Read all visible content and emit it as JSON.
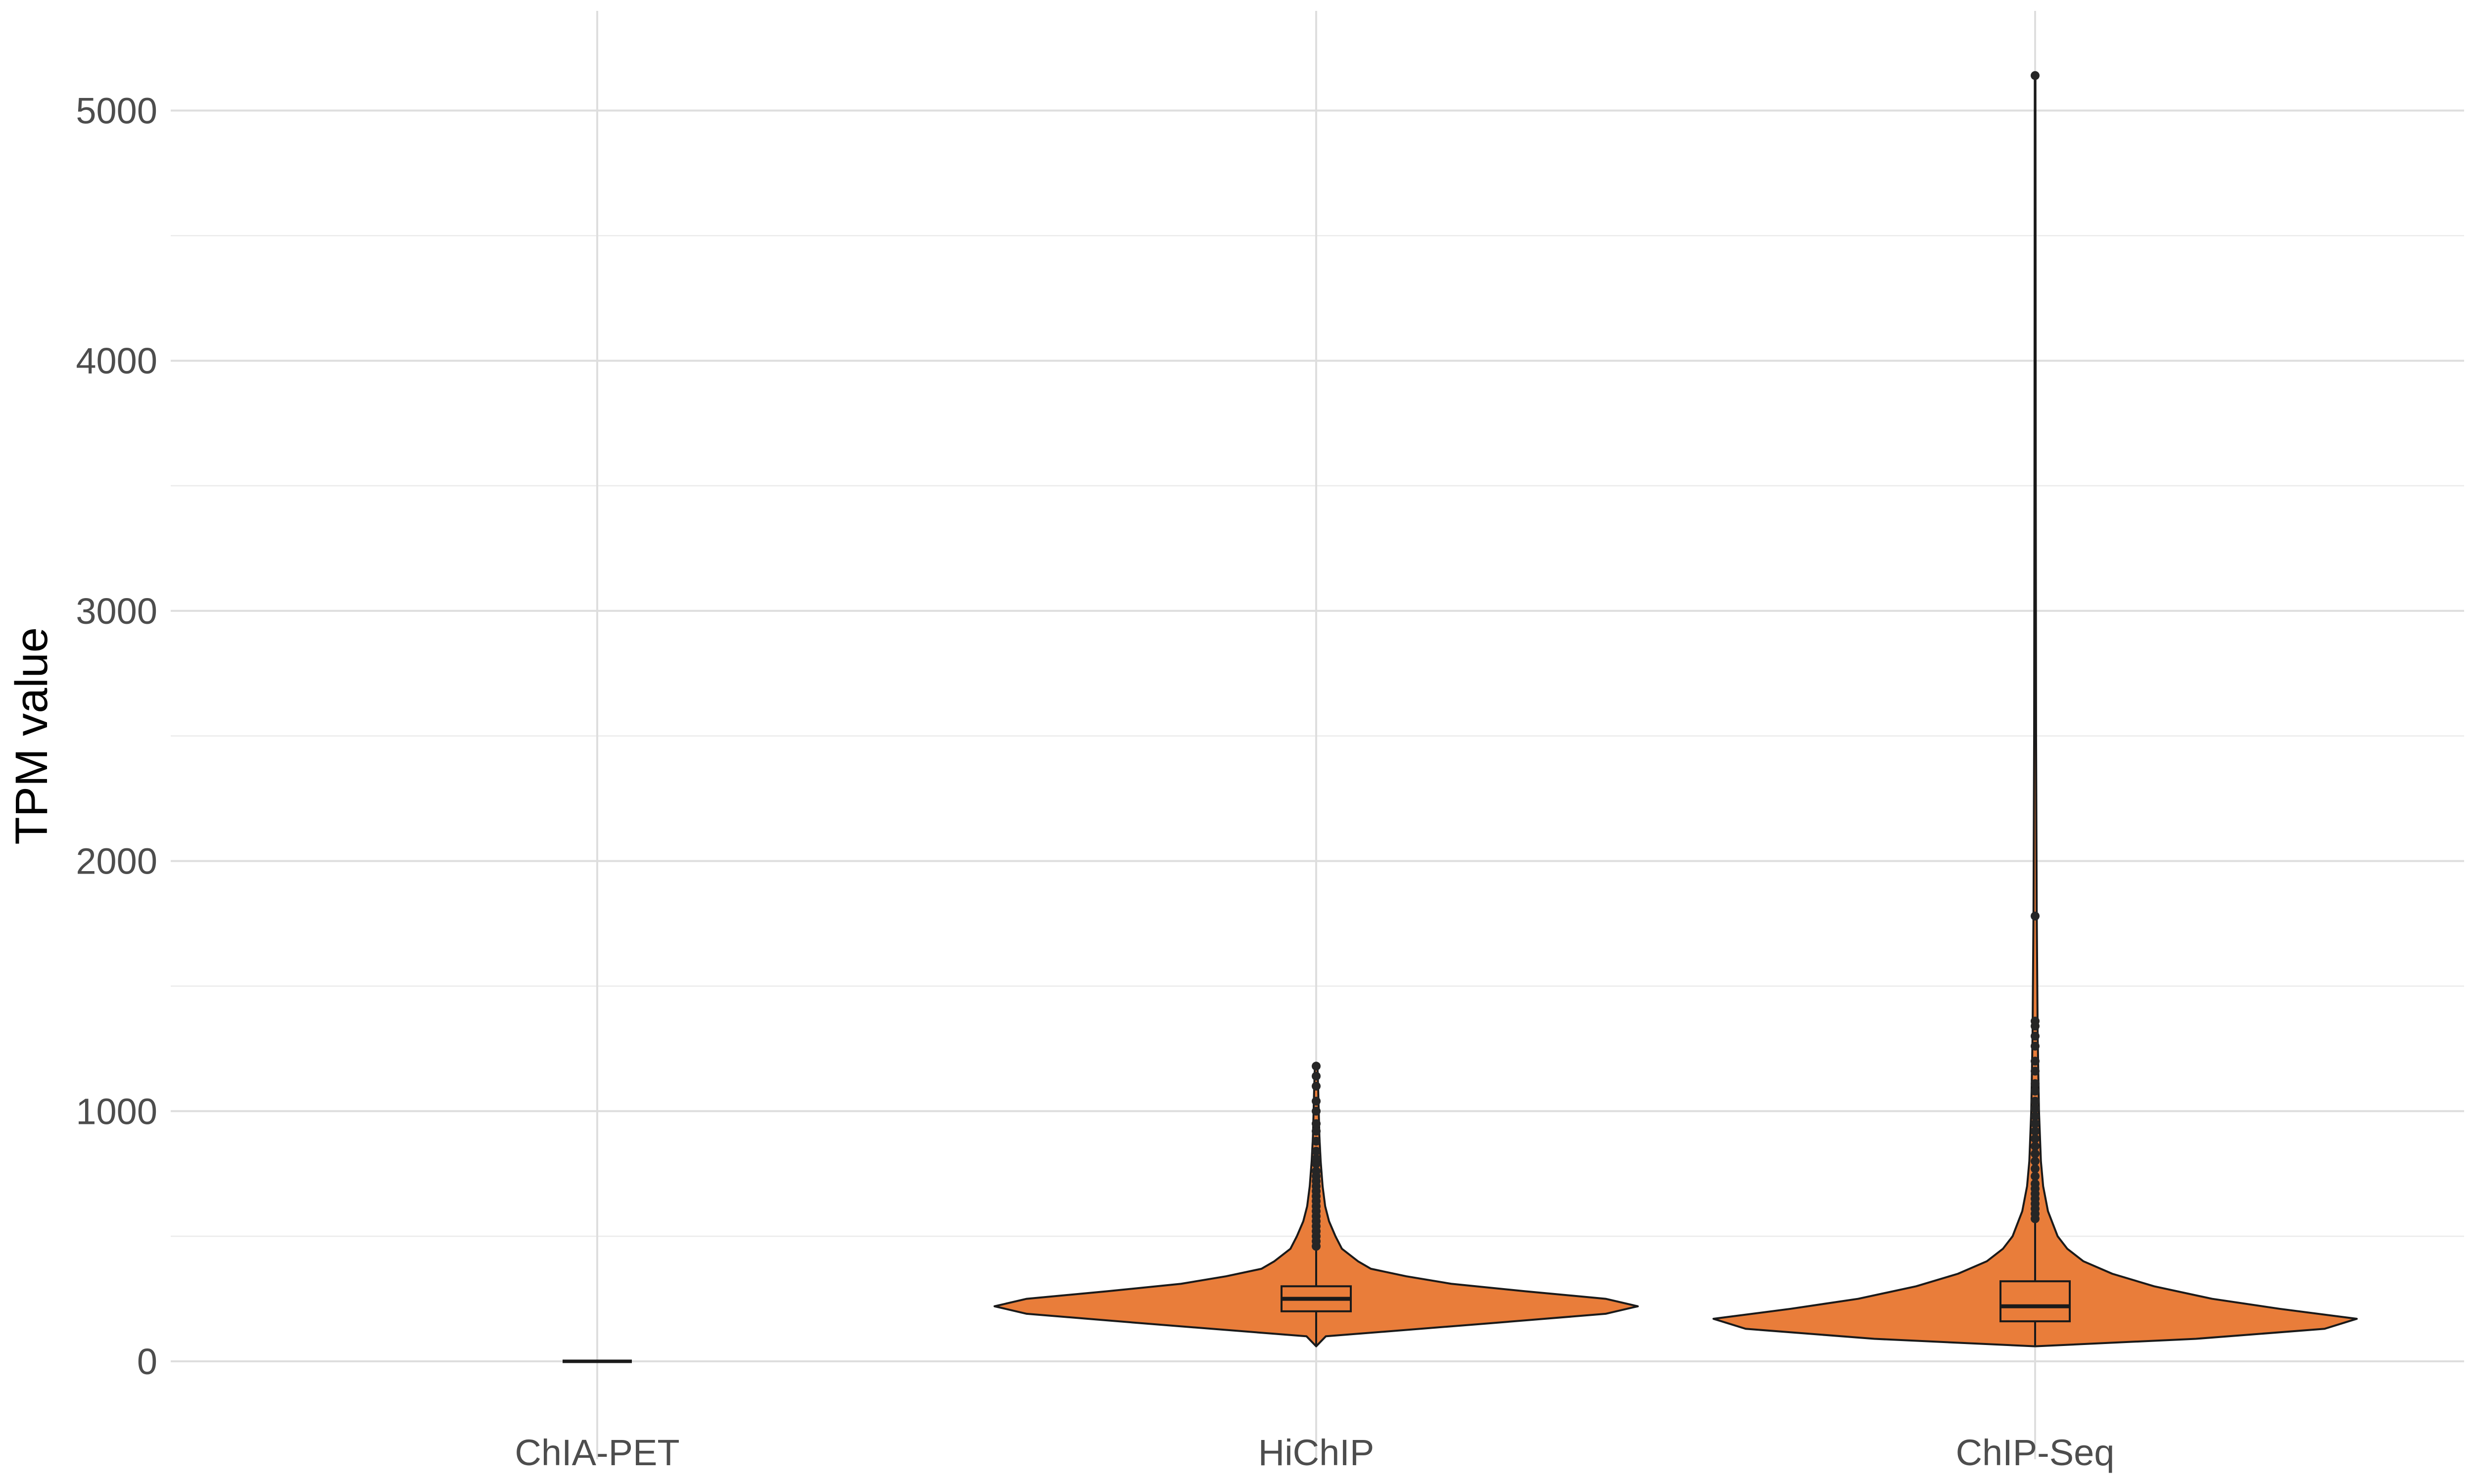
{
  "chart_data": {
    "type": "violin",
    "title": "",
    "xlabel": "",
    "ylabel": "TPM value",
    "ylim": [
      -400,
      5400
    ],
    "y_ticks": [
      0,
      1000,
      2000,
      3000,
      4000,
      5000
    ],
    "y_tick_labels": [
      "0",
      "1000",
      "2000",
      "3000",
      "4000",
      "5000"
    ],
    "y_minor_ticks": [
      500,
      1500,
      2500,
      3500,
      4500
    ],
    "grid": true,
    "legend": "none",
    "fill_color": "#e97d3a",
    "outline_color": "#1a1a1a",
    "categories": [
      "ChIA-PET",
      "HiChIP",
      "ChIP-Seq"
    ],
    "groups": [
      {
        "category": "ChIA-PET",
        "violin_profile": [],
        "box": {
          "min": 0,
          "q1": 0,
          "median": 0,
          "q3": 0,
          "max": 0
        },
        "outliers": []
      },
      {
        "category": "HiChIP",
        "violin_profile": [
          [
            60,
            0.0
          ],
          [
            100,
            0.03
          ],
          [
            150,
            0.52
          ],
          [
            190,
            0.9
          ],
          [
            220,
            1.0
          ],
          [
            250,
            0.9
          ],
          [
            280,
            0.65
          ],
          [
            310,
            0.42
          ],
          [
            340,
            0.28
          ],
          [
            370,
            0.17
          ],
          [
            400,
            0.13
          ],
          [
            450,
            0.08
          ],
          [
            500,
            0.06
          ],
          [
            560,
            0.04
          ],
          [
            620,
            0.028
          ],
          [
            700,
            0.02
          ],
          [
            800,
            0.014
          ],
          [
            900,
            0.01
          ],
          [
            1000,
            0.008
          ],
          [
            1100,
            0.006
          ],
          [
            1180,
            0.004
          ]
        ],
        "box": {
          "min": 60,
          "q1": 200,
          "median": 250,
          "q3": 300,
          "max": 450
        },
        "outliers": [
          460,
          480,
          500,
          520,
          540,
          560,
          580,
          600,
          620,
          640,
          660,
          680,
          700,
          720,
          740,
          760,
          790,
          810,
          840,
          880,
          920,
          950,
          1000,
          1040,
          1100,
          1140,
          1180
        ]
      },
      {
        "category": "ChIP-Seq",
        "violin_profile": [
          [
            60,
            0.0
          ],
          [
            90,
            0.5
          ],
          [
            130,
            0.9
          ],
          [
            170,
            1.0
          ],
          [
            210,
            0.76
          ],
          [
            250,
            0.55
          ],
          [
            300,
            0.37
          ],
          [
            350,
            0.24
          ],
          [
            400,
            0.15
          ],
          [
            450,
            0.1
          ],
          [
            500,
            0.07
          ],
          [
            550,
            0.055
          ],
          [
            600,
            0.04
          ],
          [
            700,
            0.025
          ],
          [
            800,
            0.018
          ],
          [
            1000,
            0.012
          ],
          [
            1300,
            0.008
          ],
          [
            1800,
            0.005
          ],
          [
            2500,
            0.003
          ],
          [
            3500,
            0.002
          ],
          [
            5140,
            0.001
          ]
        ],
        "box": {
          "min": 60,
          "q1": 160,
          "median": 220,
          "q3": 320,
          "max": 560
        },
        "outliers": [
          570,
          590,
          610,
          630,
          650,
          670,
          690,
          710,
          740,
          770,
          800,
          830,
          860,
          890,
          920,
          950,
          980,
          1010,
          1040,
          1080,
          1110,
          1160,
          1200,
          1260,
          1300,
          1340,
          1360,
          1780,
          5140
        ]
      }
    ]
  }
}
